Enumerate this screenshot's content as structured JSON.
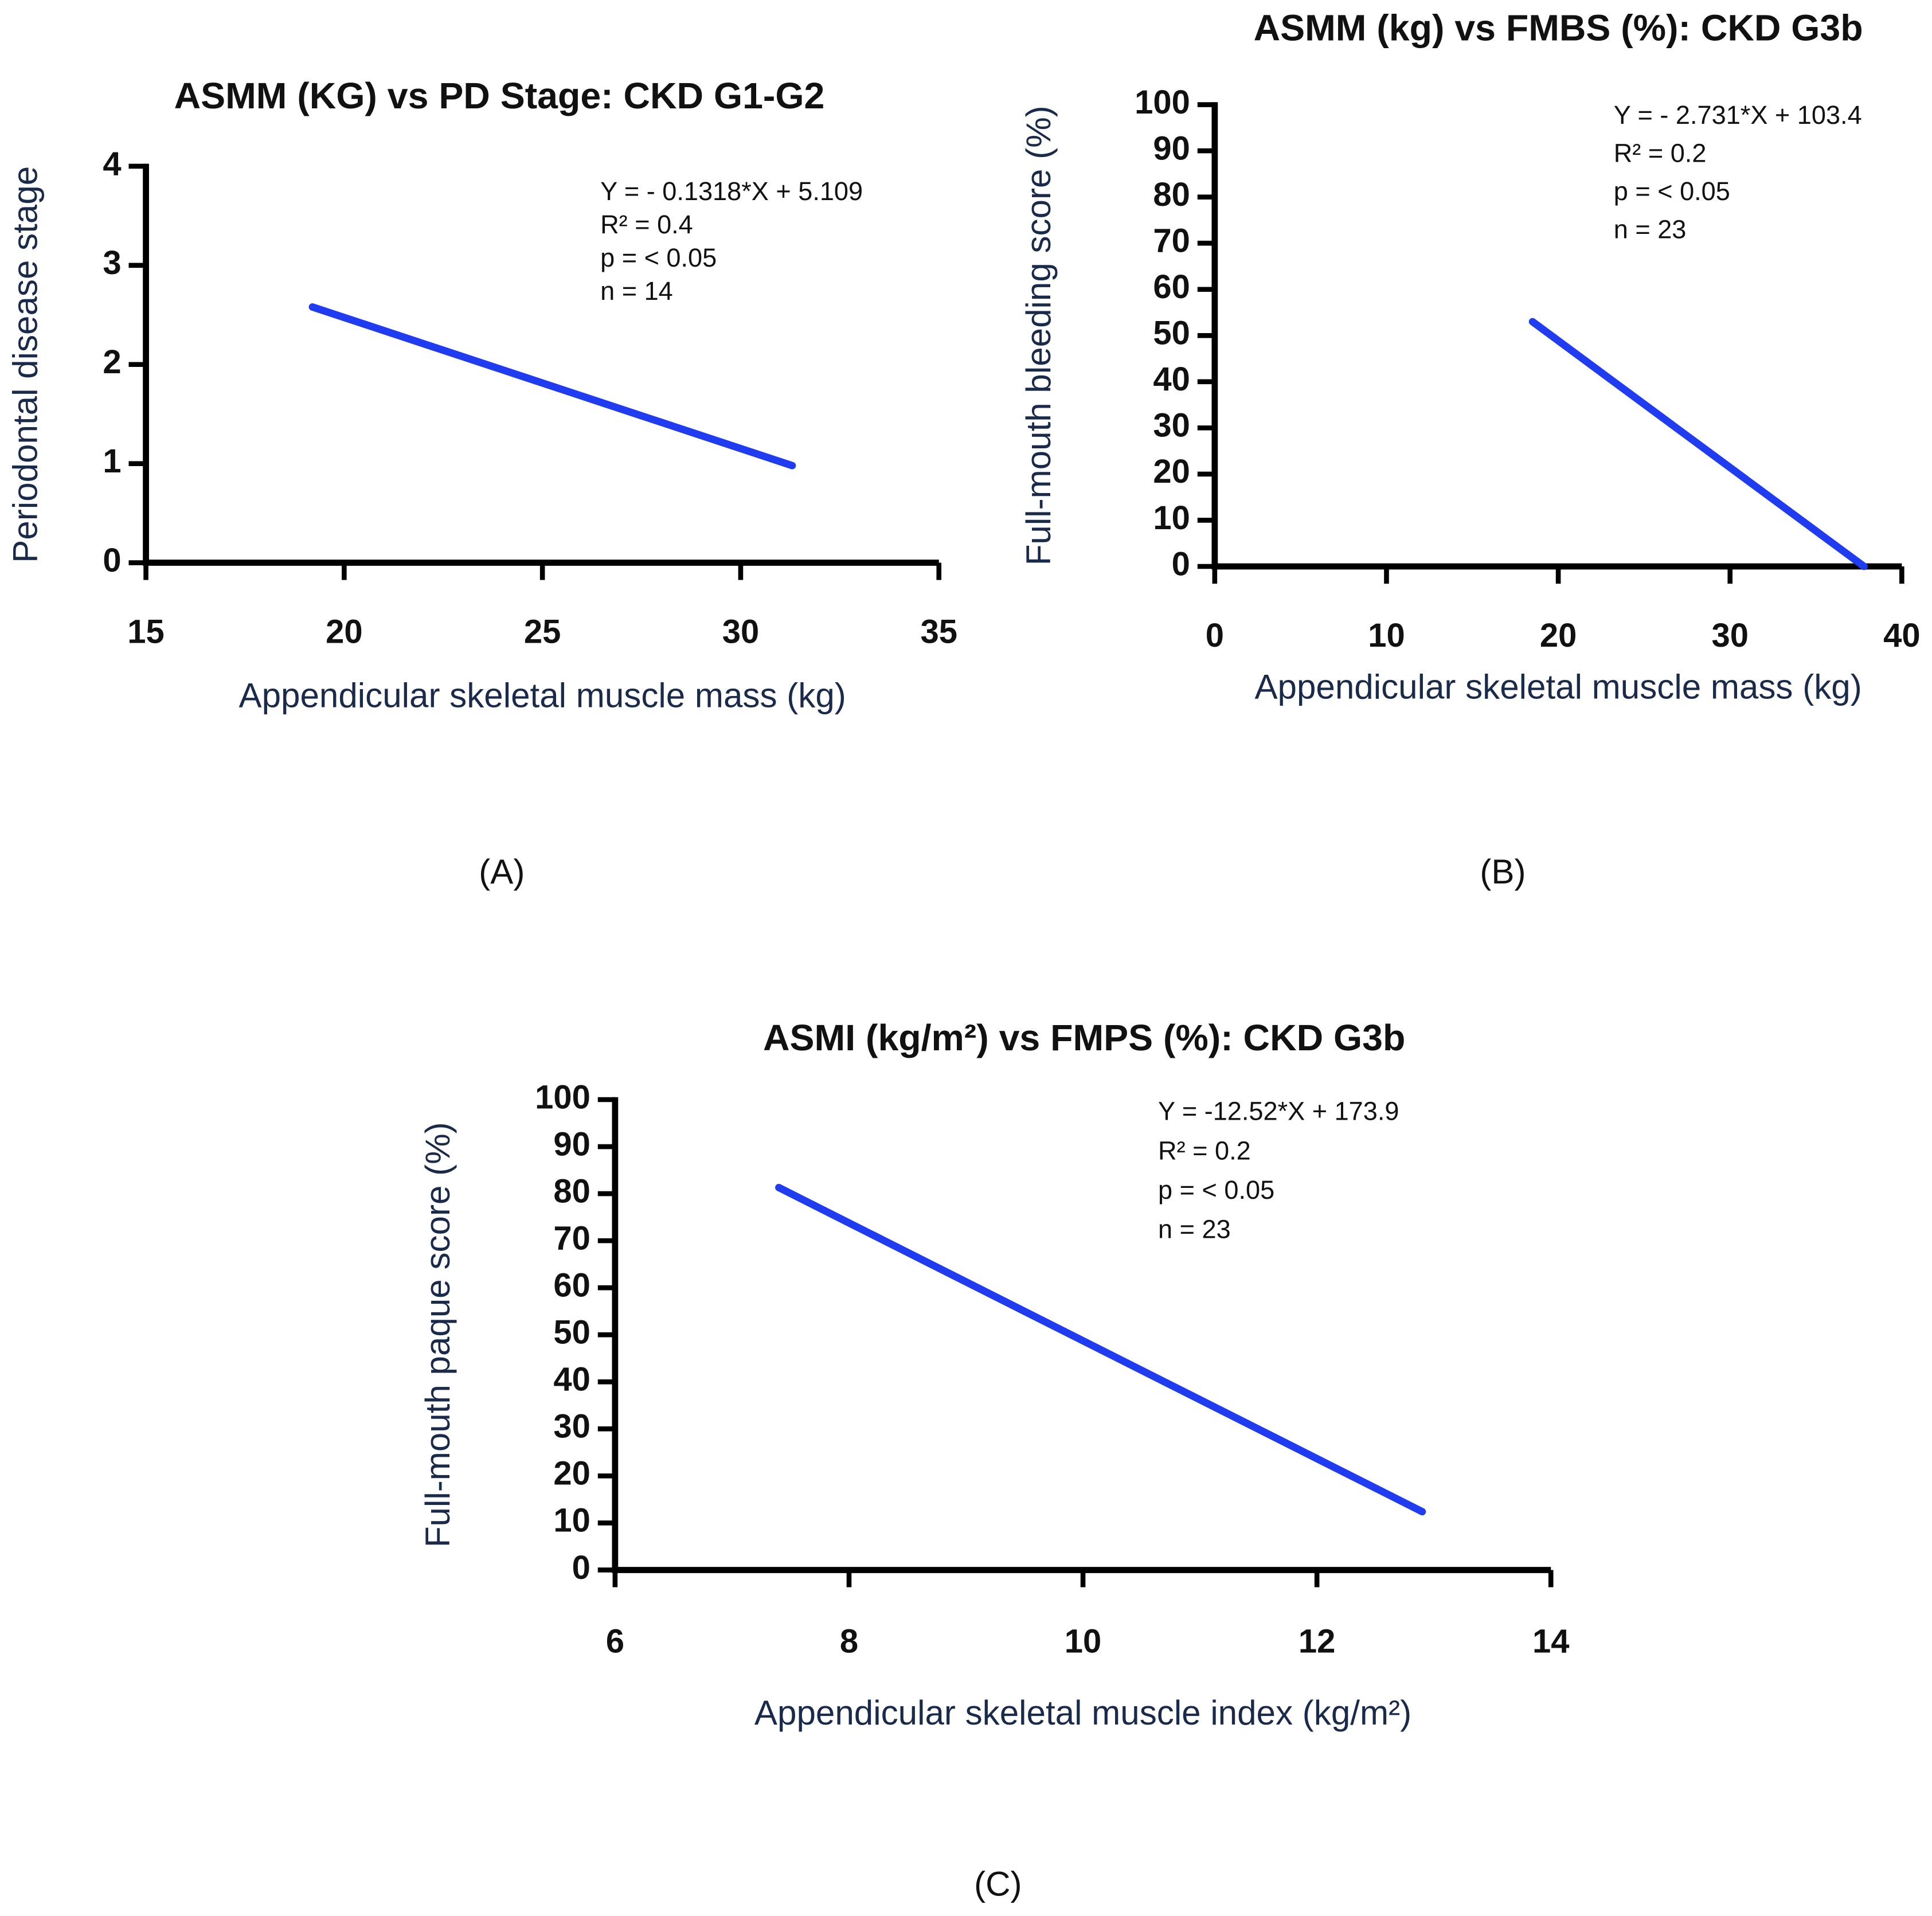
{
  "chart_data": [
    {
      "type": "line",
      "title": "ASMM (KG) vs PD Stage: CKD G1-G2",
      "panel_label": "(A)",
      "x_label": "Appendicular skeletal muscle mass (kg)",
      "y_label": "Periodontal disease stage",
      "annotations": [
        "Y = - 0.1318*X + 5.109",
        "R² = 0.4",
        "p = < 0.05",
        "n = 14"
      ],
      "x": [
        19.2,
        31.3
      ],
      "values": [
        2.58,
        0.98
      ],
      "color": "#1f3cf0",
      "xlim": [
        15,
        35
      ],
      "xticks": [
        15,
        20,
        25,
        30,
        35
      ],
      "ylim": [
        0,
        4
      ],
      "yticks": [
        0,
        1,
        2,
        3,
        4
      ]
    },
    {
      "type": "line",
      "title": "ASMM (kg) vs FMBS (%): CKD G3b",
      "panel_label": "(B)",
      "x_label": "Appendicular skeletal muscle mass (kg)",
      "y_label": "Full-mouth bleeding score (%)",
      "annotations": [
        "Y = - 2.731*X + 103.4",
        "R² = 0.2",
        "p = < 0.05",
        "n = 23"
      ],
      "x": [
        18.5,
        37.8
      ],
      "values": [
        53,
        0
      ],
      "color": "#1f3cf0",
      "xlim": [
        0,
        40
      ],
      "xticks": [
        0,
        10,
        20,
        30,
        40
      ],
      "ylim": [
        0,
        100
      ],
      "yticks": [
        0,
        10,
        20,
        30,
        40,
        50,
        60,
        70,
        80,
        90,
        100
      ]
    },
    {
      "type": "line",
      "title": "ASMI (kg/m²) vs FMPS (%): CKD G3b",
      "panel_label": "(C)",
      "x_label": "Appendicular skeletal muscle index (kg/m²)",
      "y_label": "Full-mouth paque score (%)",
      "annotations": [
        "Y = -12.52*X + 173.9",
        "R² = 0.2",
        "p = < 0.05",
        "n = 23"
      ],
      "x": [
        7.4,
        12.9
      ],
      "values": [
        81.3,
        12.4
      ],
      "color": "#1f3cf0",
      "xlim": [
        6,
        14
      ],
      "xticks": [
        6,
        8,
        10,
        12,
        14
      ],
      "ylim": [
        0,
        100
      ],
      "yticks": [
        0,
        10,
        20,
        30,
        40,
        50,
        60,
        70,
        80,
        90,
        100
      ]
    }
  ]
}
